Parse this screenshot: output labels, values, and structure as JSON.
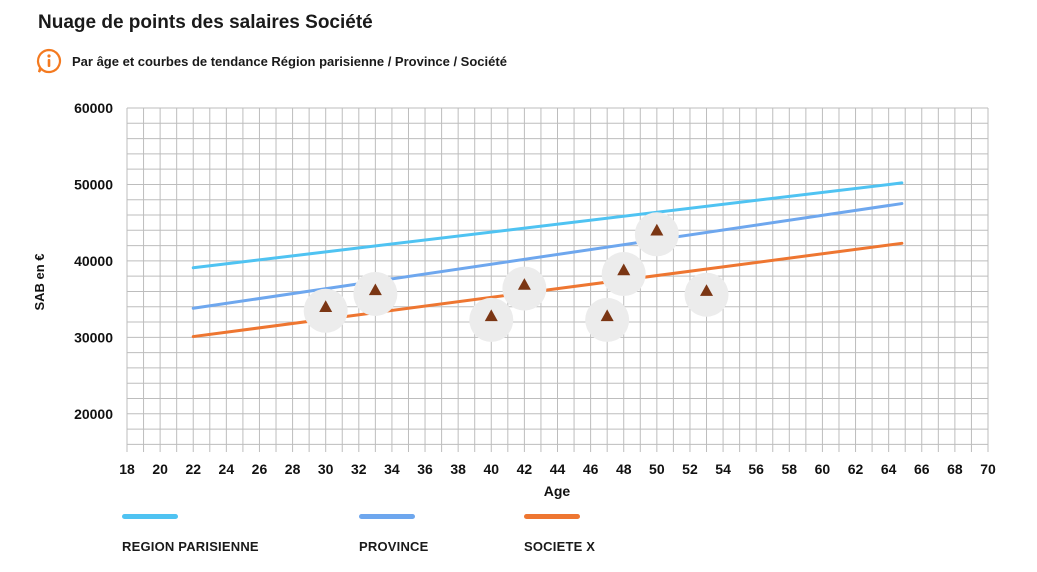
{
  "header": {
    "title": "Nuage de points des salaires Société",
    "subtitle": "Par âge et courbes de tendance Région parisienne / Province / Société",
    "info_icon": "info-icon"
  },
  "colors": {
    "accent": "#f47a20",
    "region_parisienne": "#4fc3f2",
    "province": "#6ea7ee",
    "societe_x": "#ee7631",
    "points": "#7b3614",
    "halo": "#ececec",
    "grid": "#bdbdbd"
  },
  "chart_data": {
    "type": "scatter",
    "title": "Nuage de points des salaires Société",
    "subtitle": "Par âge et courbes de tendance Région parisienne / Province / Société",
    "xlabel": "Age",
    "ylabel": "SAB en €",
    "xlim": [
      18,
      70
    ],
    "ylim": [
      15000,
      60000
    ],
    "x_ticks": [
      18,
      20,
      22,
      24,
      26,
      28,
      30,
      32,
      34,
      36,
      38,
      40,
      42,
      44,
      46,
      48,
      50,
      52,
      54,
      56,
      58,
      60,
      62,
      64,
      66,
      68,
      70
    ],
    "y_ticks": [
      20000,
      30000,
      40000,
      50000,
      60000
    ],
    "grid": true,
    "legend_position": "bottom",
    "trend_lines": [
      {
        "name": "REGION PARISIENNE",
        "color": "#4fc3f2",
        "x": [
          22,
          64.8
        ],
        "y": [
          39100,
          50200
        ]
      },
      {
        "name": "PROVINCE",
        "color": "#6ea7ee",
        "x": [
          22,
          64.8
        ],
        "y": [
          33800,
          47500
        ]
      },
      {
        "name": "SOCIETE X",
        "color": "#ee7631",
        "x": [
          22,
          64.8
        ],
        "y": [
          30100,
          42300
        ]
      }
    ],
    "points": [
      {
        "x": 30,
        "y": 34000
      },
      {
        "x": 33,
        "y": 36200
      },
      {
        "x": 40,
        "y": 32800
      },
      {
        "x": 42,
        "y": 36900
      },
      {
        "x": 47,
        "y": 32800
      },
      {
        "x": 48,
        "y": 38800
      },
      {
        "x": 50,
        "y": 44000
      },
      {
        "x": 53,
        "y": 36100
      }
    ]
  },
  "legend": {
    "items": [
      {
        "label": "REGION PARISIENNE",
        "color": "#4fc3f2"
      },
      {
        "label": "PROVINCE",
        "color": "#6ea7ee"
      },
      {
        "label": "SOCIETE X",
        "color": "#ee7631"
      }
    ]
  }
}
